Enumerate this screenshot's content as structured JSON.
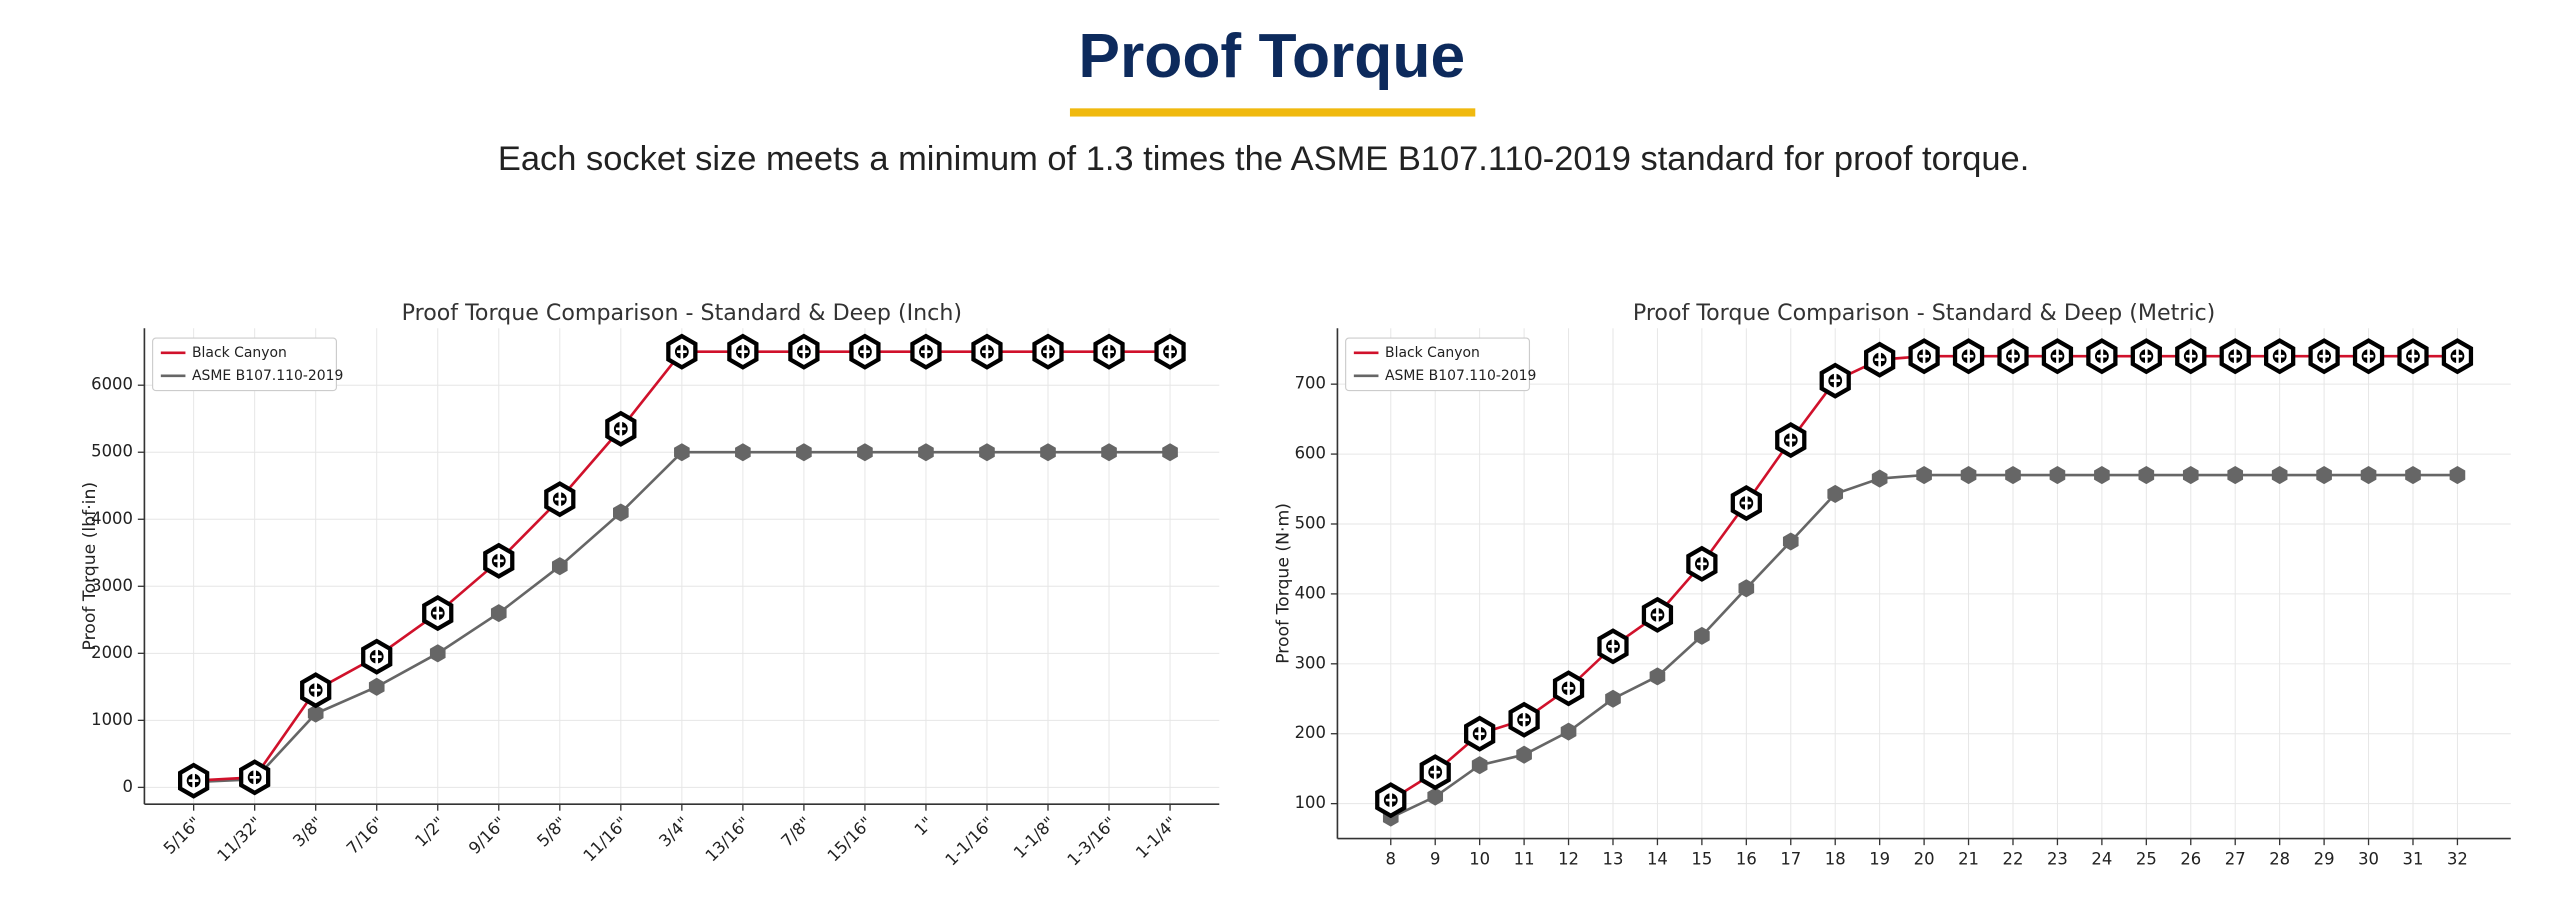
{
  "header": {
    "title": "Proof Torque",
    "subtitle": "Each socket size meets a minimum of 1.3 times the ASME B107.110-2019 standard for proof torque."
  },
  "chart_data": [
    {
      "type": "line",
      "title": "Proof Torque Comparison - Standard & Deep (Inch)",
      "y_label": "Proof Torque (lbf·in)",
      "categories": [
        "5/16\"",
        "11/32\"",
        "3/8\"",
        "7/16\"",
        "1/2\"",
        "9/16\"",
        "5/8\"",
        "11/16\"",
        "3/4\"",
        "13/16\"",
        "7/8\"",
        "15/16\"",
        "1\"",
        "1-1/16\"",
        "1-1/8\"",
        "1-3/16\"",
        "1-1/4\""
      ],
      "series": [
        {
          "name": "Black Canyon",
          "color": "#d0112b",
          "values": [
            100,
            150,
            1450,
            1950,
            2600,
            3380,
            4300,
            5350,
            6500,
            6500,
            6500,
            6500,
            6500,
            6500,
            6500,
            6500,
            6500
          ]
        },
        {
          "name": "ASME B107.110-2019",
          "color": "#666666",
          "values": [
            80,
            120,
            1100,
            1500,
            2000,
            2600,
            3300,
            4100,
            5000,
            5000,
            5000,
            5000,
            5000,
            5000,
            5000,
            5000,
            5000
          ]
        }
      ],
      "ylim": [
        -250,
        6850
      ],
      "yticks": [
        0,
        1000,
        2000,
        3000,
        4000,
        5000,
        6000
      ],
      "grid": true,
      "legend": "upper left"
    },
    {
      "type": "line",
      "title": "Proof Torque Comparison - Standard & Deep (Metric)",
      "y_label": "Proof Torque (N·m)",
      "x": [
        8,
        9,
        10,
        11,
        12,
        13,
        14,
        15,
        16,
        17,
        18,
        19,
        20,
        21,
        22,
        23,
        24,
        25,
        26,
        27,
        28,
        29,
        30,
        31,
        32
      ],
      "series": [
        {
          "name": "Black Canyon",
          "color": "#d0112b",
          "values": [
            105,
            145,
            200,
            220,
            265,
            325,
            370,
            443,
            530,
            620,
            705,
            735,
            740,
            740,
            740,
            740,
            740,
            740,
            740,
            740,
            740,
            740,
            740,
            740,
            740
          ]
        },
        {
          "name": "ASME B107.110-2019",
          "color": "#666666",
          "values": [
            80,
            110,
            155,
            170,
            203,
            250,
            282,
            340,
            408,
            475,
            543,
            565,
            570,
            570,
            570,
            570,
            570,
            570,
            570,
            570,
            570,
            570,
            570,
            570,
            570
          ]
        }
      ],
      "xlim": [
        6.8,
        33.2
      ],
      "xticks": [
        8,
        9,
        10,
        11,
        12,
        13,
        14,
        15,
        16,
        17,
        18,
        19,
        20,
        21,
        22,
        23,
        24,
        25,
        26,
        27,
        28,
        29,
        30,
        31,
        32
      ],
      "ylim": [
        50,
        780
      ],
      "yticks": [
        100,
        200,
        300,
        400,
        500,
        600,
        700
      ],
      "grid": true,
      "legend": "upper left"
    }
  ]
}
